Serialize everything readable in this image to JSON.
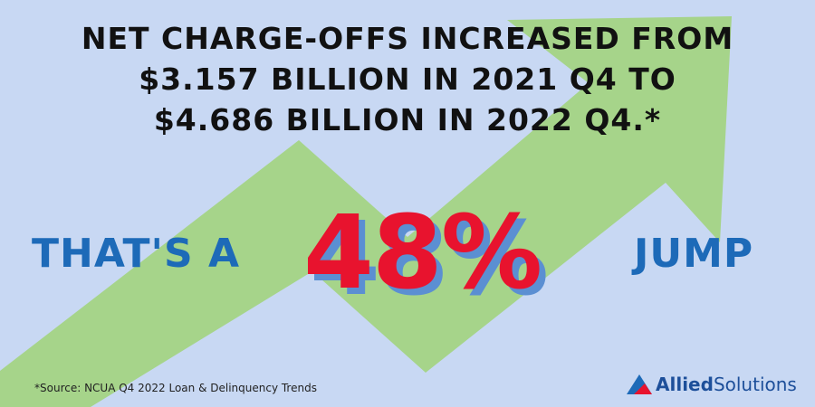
{
  "headline": {
    "lines": [
      "NET CHARGE-OFFS INCREASED FROM",
      "$3.157 BILLION IN 2021 Q4 TO",
      "$4.686 BILLION IN 2022 Q4.*"
    ]
  },
  "callout": {
    "prefix": "THAT'S A",
    "figure": "48%",
    "suffix": "JUMP"
  },
  "footnote": "*Source: NCUA Q4 2022 Loan & Delinquency Trends",
  "logo": {
    "brand": "Allied",
    "product": "Solutions"
  }
}
